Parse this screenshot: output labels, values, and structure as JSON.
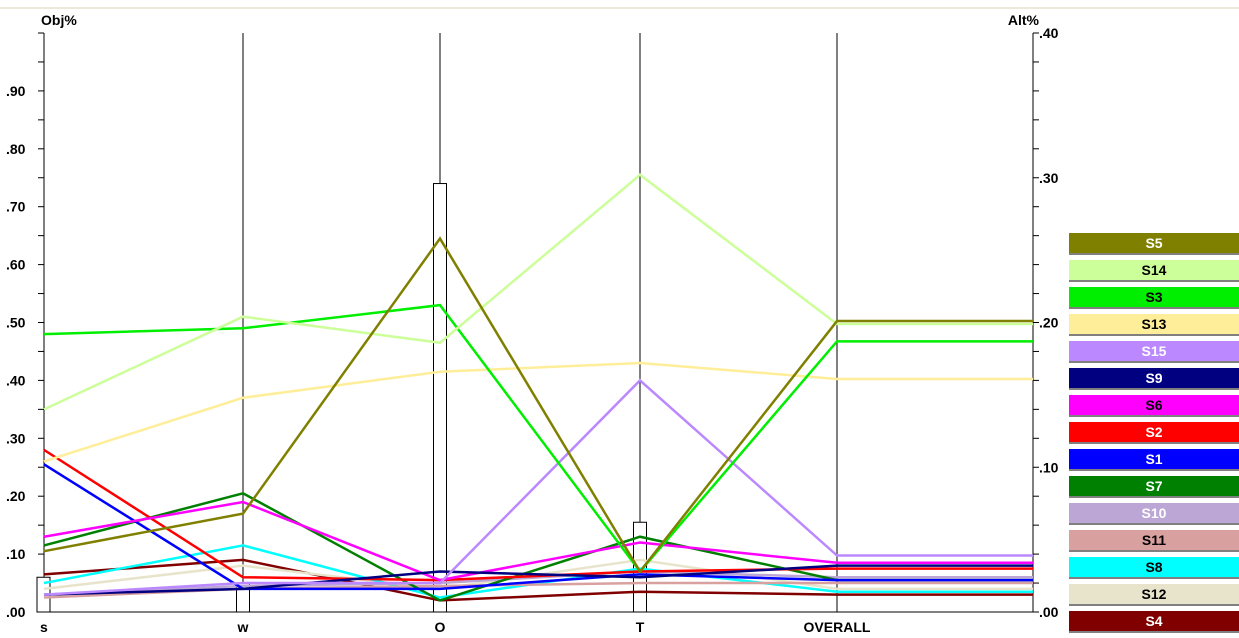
{
  "chart_data": {
    "type": "line",
    "left_axis": {
      "label": "Obj%",
      "ticks": [
        ".00",
        ".10",
        ".20",
        ".30",
        ".40",
        ".50",
        ".60",
        ".70",
        ".80",
        ".90"
      ],
      "range": [
        0,
        1
      ]
    },
    "right_axis": {
      "label": "Alt%",
      "ticks": [
        ".00",
        ".10",
        ".20",
        ".30",
        ".40"
      ],
      "range": [
        0,
        0.4
      ]
    },
    "categories": [
      "s",
      "w",
      "O",
      "T",
      "OVERALL"
    ],
    "objective_weights": [
      0.06,
      0.05,
      0.74,
      0.155
    ],
    "series": [
      {
        "name": "S5",
        "color": "#808000",
        "text_color": "#ffffff",
        "values": [
          0.105,
          0.17,
          0.645,
          0.07,
          0.201
        ]
      },
      {
        "name": "S14",
        "color": "#ccff99",
        "text_color": "#000000",
        "values": [
          0.35,
          0.51,
          0.465,
          0.755,
          0.199
        ]
      },
      {
        "name": "S3",
        "color": "#00ee00",
        "text_color": "#000000",
        "values": [
          0.48,
          0.49,
          0.53,
          0.07,
          0.187
        ]
      },
      {
        "name": "S13",
        "color": "#ffee99",
        "text_color": "#000000",
        "values": [
          0.26,
          0.37,
          0.415,
          0.43,
          0.161
        ]
      },
      {
        "name": "S15",
        "color": "#bb88ff",
        "text_color": "#ffffff",
        "values": [
          0.03,
          0.05,
          0.05,
          0.4,
          0.039
        ]
      },
      {
        "name": "S9",
        "color": "#000080",
        "text_color": "#ffffff",
        "values": [
          0.03,
          0.04,
          0.07,
          0.06,
          0.032
        ]
      },
      {
        "name": "S6",
        "color": "#ff00ff",
        "text_color": "#000000",
        "values": [
          0.13,
          0.19,
          0.055,
          0.12,
          0.034
        ]
      },
      {
        "name": "S2",
        "color": "#ff0000",
        "text_color": "#ffffff",
        "values": [
          0.28,
          0.06,
          0.055,
          0.07,
          0.03
        ]
      },
      {
        "name": "S1",
        "color": "#0000ff",
        "text_color": "#ffffff",
        "values": [
          0.255,
          0.04,
          0.04,
          0.065,
          0.022
        ]
      },
      {
        "name": "S7",
        "color": "#008000",
        "text_color": "#ffffff",
        "values": [
          0.115,
          0.205,
          0.02,
          0.13,
          0.022
        ]
      },
      {
        "name": "S10",
        "color": "#bba6d6",
        "text_color": "#ffffff",
        "values": [
          0.03,
          0.045,
          0.05,
          0.07,
          0.024
        ]
      },
      {
        "name": "S11",
        "color": "#d9a0a0",
        "text_color": "#000000",
        "values": [
          0.025,
          0.04,
          0.045,
          0.05,
          0.02
        ]
      },
      {
        "name": "S8",
        "color": "#00ffff",
        "text_color": "#000000",
        "values": [
          0.05,
          0.115,
          0.025,
          0.075,
          0.014
        ]
      },
      {
        "name": "S12",
        "color": "#e8e4cc",
        "text_color": "#000000",
        "values": [
          0.04,
          0.08,
          0.04,
          0.09,
          0.016
        ]
      },
      {
        "name": "S4",
        "color": "#800000",
        "text_color": "#ffffff",
        "values": [
          0.065,
          0.09,
          0.02,
          0.035,
          0.012
        ]
      }
    ]
  }
}
